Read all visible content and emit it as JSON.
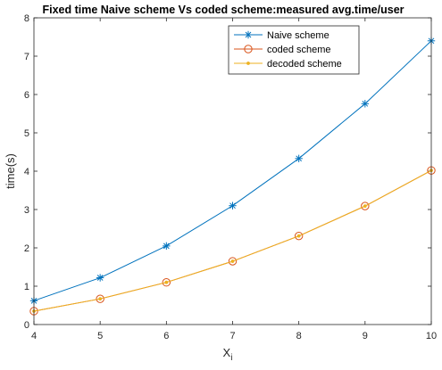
{
  "chart_data": {
    "type": "line",
    "title": "Fixed time Naive scheme Vs coded scheme:measured avg.time/user",
    "xlabel": "X",
    "xlabel_subscript": "i",
    "ylabel": "time(s)",
    "x": [
      4,
      5,
      6,
      7,
      8,
      9,
      10
    ],
    "xlim": [
      4,
      10
    ],
    "ylim": [
      0,
      8
    ],
    "xticks": [
      4,
      5,
      6,
      7,
      8,
      9,
      10
    ],
    "yticks": [
      0,
      1,
      2,
      3,
      4,
      5,
      6,
      7,
      8
    ],
    "grid": false,
    "legend_position": "top-right",
    "series": [
      {
        "name": "Naive scheme",
        "values": [
          0.62,
          1.22,
          2.05,
          3.1,
          4.33,
          5.76,
          7.4
        ],
        "color": "#0072BD",
        "marker": "asterisk"
      },
      {
        "name": "coded scheme",
        "values": [
          0.35,
          0.67,
          1.1,
          1.65,
          2.31,
          3.09,
          4.02
        ],
        "color": "#D95319",
        "marker": "circle"
      },
      {
        "name": "decoded scheme",
        "values": [
          0.35,
          0.67,
          1.1,
          1.65,
          2.31,
          3.09,
          4.02
        ],
        "color": "#EDB120",
        "marker": "point"
      }
    ]
  }
}
